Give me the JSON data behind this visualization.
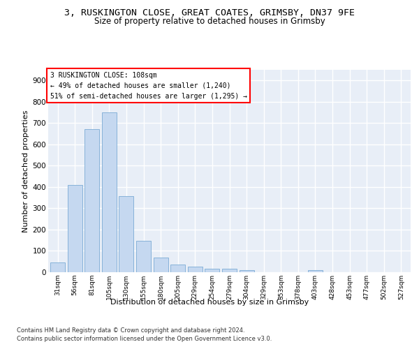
{
  "title_line1": "3, RUSKINGTON CLOSE, GREAT COATES, GRIMSBY, DN37 9FE",
  "title_line2": "Size of property relative to detached houses in Grimsby",
  "xlabel": "Distribution of detached houses by size in Grimsby",
  "ylabel": "Number of detached properties",
  "categories": [
    "31sqm",
    "56sqm",
    "81sqm",
    "105sqm",
    "130sqm",
    "155sqm",
    "180sqm",
    "205sqm",
    "229sqm",
    "254sqm",
    "279sqm",
    "304sqm",
    "329sqm",
    "353sqm",
    "378sqm",
    "403sqm",
    "428sqm",
    "453sqm",
    "477sqm",
    "502sqm",
    "527sqm"
  ],
  "values": [
    47,
    410,
    670,
    750,
    357,
    148,
    70,
    36,
    27,
    17,
    17,
    10,
    0,
    0,
    0,
    10,
    0,
    0,
    0,
    0,
    0
  ],
  "bar_color": "#c5d8f0",
  "bar_edge_color": "#7aabd4",
  "annotation_box_text_line1": "3 RUSKINGTON CLOSE: 108sqm",
  "annotation_box_text_line2": "← 49% of detached houses are smaller (1,240)",
  "annotation_box_text_line3": "51% of semi-detached houses are larger (1,295) →",
  "annotation_box_color": "white",
  "annotation_box_edge_color": "red",
  "ylim": [
    0,
    950
  ],
  "yticks": [
    0,
    100,
    200,
    300,
    400,
    500,
    600,
    700,
    800,
    900
  ],
  "footer_line1": "Contains HM Land Registry data © Crown copyright and database right 2024.",
  "footer_line2": "Contains public sector information licensed under the Open Government Licence v3.0.",
  "fig_background_color": "#ffffff",
  "plot_background_color": "#e8eef7",
  "grid_color": "#ffffff",
  "title_fontsize": 9.5,
  "subtitle_fontsize": 8.5,
  "axis_label_fontsize": 8,
  "tick_fontsize": 6.5,
  "annotation_fontsize": 7,
  "footer_fontsize": 6
}
